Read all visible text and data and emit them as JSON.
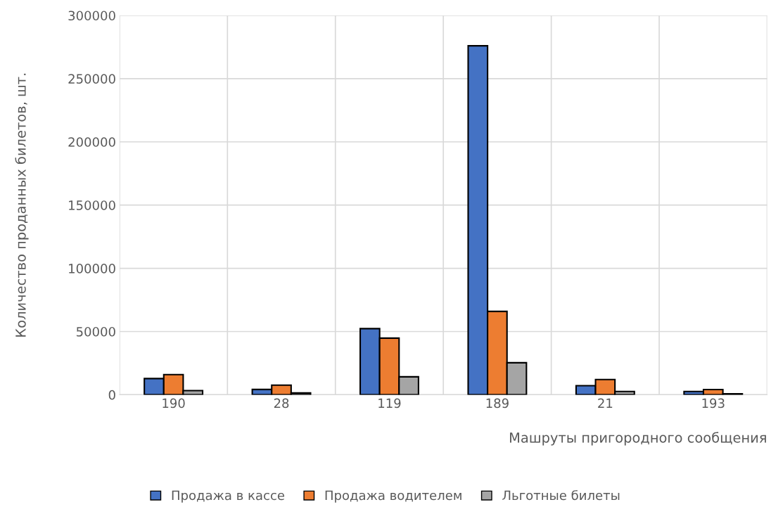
{
  "chart_data": {
    "type": "bar",
    "xlabel": "Машруты пригородного сообщения",
    "ylabel": "Количество проданных билетов, шт.",
    "categories": [
      "190",
      "28",
      "119",
      "189",
      "21",
      "193"
    ],
    "series": [
      {
        "name": "Продажа в кассе",
        "color": "#4472c4",
        "values": [
          12800,
          4200,
          52300,
          276000,
          7200,
          2600
        ]
      },
      {
        "name": "Продажа водителем",
        "color": "#ed7d31",
        "values": [
          15900,
          7600,
          44800,
          65900,
          12000,
          4100
        ]
      },
      {
        "name": "Льготные билеты",
        "color": "#a5a5a5",
        "values": [
          3300,
          1400,
          14200,
          25300,
          2600,
          700
        ]
      }
    ],
    "ylim": [
      0,
      300000
    ],
    "yticks": [
      0,
      50000,
      100000,
      150000,
      200000,
      250000,
      300000
    ],
    "grid": true,
    "legend": "bottom"
  }
}
